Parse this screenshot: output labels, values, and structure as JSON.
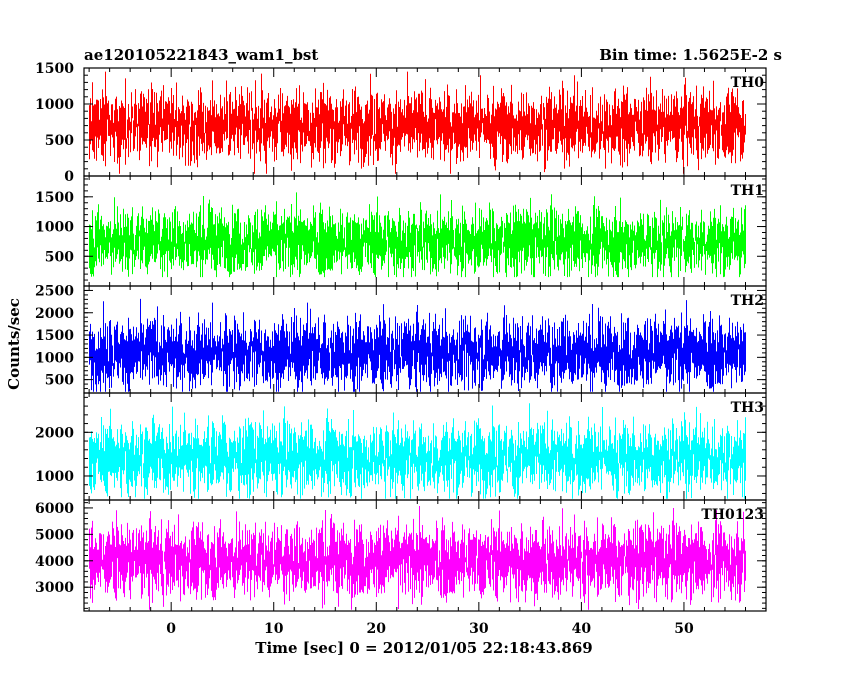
{
  "header": {
    "left": "ae120105221843_wam1_bst",
    "right": "Bin time: 1.5625E-2 s"
  },
  "chart_data": {
    "type": "line",
    "render": "binned-lightcurve",
    "title": "ae120105221843_wam1_bst",
    "subtitle": "Bin time: 1.5625E-2 s",
    "xlabel": "Time [sec] 0 = 2012/01/05 22:18:43.869",
    "ylabel": "Counts/sec",
    "xlim": [
      -8.5,
      58
    ],
    "x_ticks": [
      0,
      10,
      20,
      30,
      40,
      50
    ],
    "x_range_data": [
      -8.0,
      56.0
    ],
    "bin_time": 0.015625,
    "panels": [
      {
        "name": "TH0",
        "color": "#ff0000",
        "ylim": [
          0,
          1500
        ],
        "y_ticks": [
          0,
          500,
          1000,
          1500
        ],
        "approx_mean": 700,
        "approx_min": 30,
        "approx_max": 1500
      },
      {
        "name": "TH1",
        "color": "#00ff00",
        "ylim": [
          0,
          1850
        ],
        "y_ticks": [
          500,
          1000,
          1500
        ],
        "approx_mean": 750,
        "approx_min": 150,
        "approx_max": 1800
      },
      {
        "name": "TH2",
        "color": "#0000ff",
        "ylim": [
          200,
          2600
        ],
        "y_ticks": [
          500,
          1000,
          1500,
          2000,
          2500
        ],
        "approx_mean": 1100,
        "approx_min": 230,
        "approx_max": 2600
      },
      {
        "name": "TH3",
        "color": "#00ffff",
        "ylim": [
          450,
          2900
        ],
        "y_ticks": [
          1000,
          2000
        ],
        "approx_mean": 1430,
        "approx_min": 480,
        "approx_max": 2900
      },
      {
        "name": "TH0123",
        "color": "#ff00ff",
        "ylim": [
          2100,
          6300
        ],
        "y_ticks": [
          3000,
          4000,
          5000,
          6000
        ],
        "approx_mean": 4000,
        "approx_min": 2150,
        "approx_max": 6300
      }
    ]
  }
}
